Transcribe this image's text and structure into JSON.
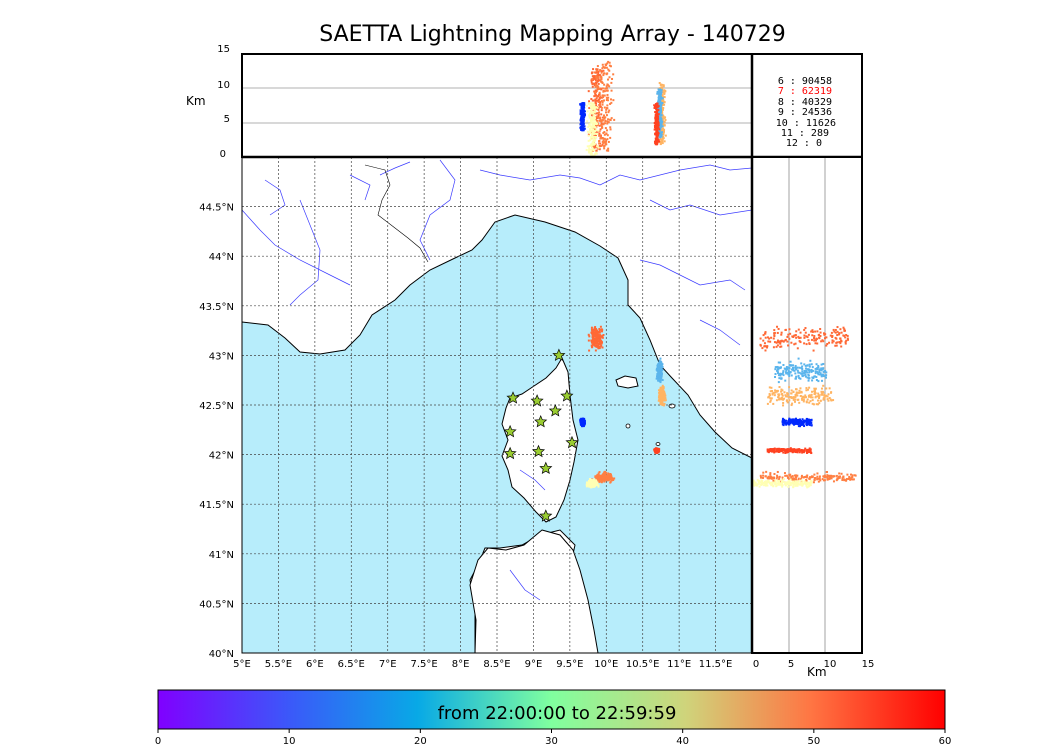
{
  "title": "SAETTA Lightning Mapping Array - 140729",
  "altitude_panel": {
    "ylabel": "Km",
    "yticks": [
      "15",
      "10",
      "5",
      "0"
    ],
    "counts": [
      {
        "label": "6 :    90458",
        "color": "#000000"
      },
      {
        "label": "7 :    62319",
        "color": "#ff0000"
      },
      {
        "label": "8 :    40329",
        "color": "#000000"
      },
      {
        "label": "9 :    24536",
        "color": "#000000"
      },
      {
        "label": "10 :    11626",
        "color": "#000000"
      },
      {
        "label": "11 :      289",
        "color": "#000000"
      },
      {
        "label": "12 :        0",
        "color": "#000000"
      }
    ]
  },
  "map": {
    "lon_ticks": [
      "5°E",
      "5.5°E",
      "6°E",
      "6.5°E",
      "7°E",
      "7.5°E",
      "8°E",
      "8.5°E",
      "9°E",
      "9.5°E",
      "10°E",
      "10.5°E",
      "11°E",
      "11.5°E"
    ],
    "lat_ticks": [
      "44.5°N",
      "44°N",
      "43.5°N",
      "43°N",
      "42.5°N",
      "42°N",
      "41.5°N",
      "41°N",
      "40.5°N",
      "40°N"
    ],
    "sea_color": "#b7edfb",
    "land_color": "#ffffff",
    "station_color": "#9acd32"
  },
  "side_panel": {
    "xlabel": "Km",
    "xticks": [
      "0",
      "5",
      "10",
      "15"
    ]
  },
  "colorbar": {
    "label": "from 22:00:00 to 22:59:59",
    "ticks": [
      "0",
      "10",
      "20",
      "30",
      "40",
      "50",
      "60"
    ],
    "colormap": "rainbow"
  },
  "chart_data": {
    "type": "scatter",
    "description_units": "lon (deg E), lat (deg N), altitude (km), time (minutes after 22:00)",
    "xlim": [
      5,
      12
    ],
    "ylim": [
      40,
      45
    ],
    "alt_lim": [
      0,
      15
    ],
    "time_lim": [
      0,
      60
    ],
    "stations": [
      {
        "lon": 9.35,
        "lat": 43.0
      },
      {
        "lon": 8.72,
        "lat": 42.57
      },
      {
        "lon": 9.05,
        "lat": 42.54
      },
      {
        "lon": 9.46,
        "lat": 42.59
      },
      {
        "lon": 9.3,
        "lat": 42.44
      },
      {
        "lon": 9.1,
        "lat": 42.33
      },
      {
        "lon": 8.68,
        "lat": 42.23
      },
      {
        "lon": 9.53,
        "lat": 42.12
      },
      {
        "lon": 9.07,
        "lat": 42.03
      },
      {
        "lon": 8.68,
        "lat": 42.01
      },
      {
        "lon": 9.17,
        "lat": 41.86
      },
      {
        "lon": 9.17,
        "lat": 41.38
      }
    ],
    "clusters": [
      {
        "lon": 9.85,
        "lat": 43.18,
        "spread_lon": 0.12,
        "spread_lat": 0.14,
        "time": 52,
        "alt_min": 1,
        "alt_max": 13
      },
      {
        "lon": 10.75,
        "lat": 42.6,
        "spread_lon": 0.06,
        "spread_lat": 0.12,
        "time": 45,
        "alt_min": 2,
        "alt_max": 11
      },
      {
        "lon": 10.72,
        "lat": 42.85,
        "spread_lon": 0.05,
        "spread_lat": 0.14,
        "time": 15,
        "alt_min": 3,
        "alt_max": 10
      },
      {
        "lon": 9.66,
        "lat": 42.34,
        "spread_lon": 0.04,
        "spread_lat": 0.05,
        "time": 3,
        "alt_min": 4,
        "alt_max": 8
      },
      {
        "lon": 9.95,
        "lat": 41.78,
        "spread_lon": 0.18,
        "spread_lat": 0.07,
        "time": 50,
        "alt_min": 1,
        "alt_max": 14
      },
      {
        "lon": 9.8,
        "lat": 41.72,
        "spread_lon": 0.1,
        "spread_lat": 0.05,
        "time": 30,
        "alt_min": 0,
        "alt_max": 8
      },
      {
        "lon": 10.68,
        "lat": 42.05,
        "spread_lon": 0.04,
        "spread_lat": 0.03,
        "time": 55,
        "alt_min": 2,
        "alt_max": 8
      }
    ]
  }
}
